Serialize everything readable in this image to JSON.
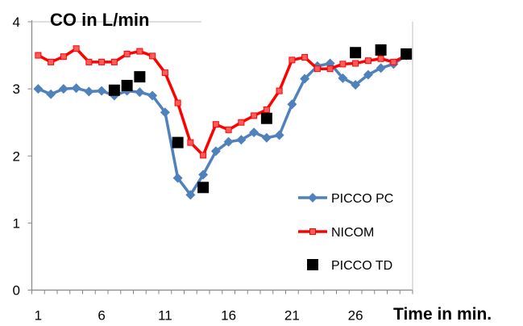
{
  "chart_data": {
    "type": "line",
    "title": "CO in L/min",
    "xlabel": "Time in min.",
    "ylabel": "",
    "xlim": [
      1,
      30
    ],
    "ylim": [
      0,
      4
    ],
    "x_ticks": [
      1,
      6,
      11,
      16,
      21,
      26
    ],
    "y_ticks": [
      0,
      1,
      2,
      3,
      4
    ],
    "grid": false,
    "legend_position": "bottom-right",
    "series": [
      {
        "name": "PICCO PC",
        "style": "line-diamond",
        "color": "#4F81BD",
        "x": [
          1,
          2,
          3,
          4,
          5,
          6,
          7,
          8,
          9,
          10,
          11,
          12,
          13,
          14,
          15,
          16,
          17,
          18,
          19,
          20,
          21,
          22,
          23,
          24,
          25,
          26,
          27,
          28,
          29,
          30
        ],
        "values": [
          3.0,
          2.92,
          3.0,
          3.01,
          2.96,
          2.97,
          2.9,
          2.97,
          2.95,
          2.9,
          2.65,
          1.67,
          1.42,
          1.72,
          2.07,
          2.21,
          2.24,
          2.35,
          2.27,
          2.31,
          2.77,
          3.15,
          3.34,
          3.38,
          3.16,
          3.06,
          3.21,
          3.31,
          3.37,
          3.5
        ]
      },
      {
        "name": "NICOM",
        "style": "line-square",
        "color": "#FF0000",
        "x": [
          1,
          2,
          3,
          4,
          5,
          6,
          7,
          8,
          9,
          10,
          11,
          12,
          13,
          14,
          15,
          16,
          17,
          18,
          19,
          20,
          21,
          22,
          23,
          24,
          25,
          26,
          27,
          28,
          29,
          30
        ],
        "values": [
          3.5,
          3.4,
          3.48,
          3.6,
          3.4,
          3.4,
          3.4,
          3.52,
          3.56,
          3.49,
          3.24,
          2.79,
          2.2,
          2.01,
          2.47,
          2.39,
          2.5,
          2.6,
          2.69,
          2.97,
          3.43,
          3.47,
          3.3,
          3.3,
          3.37,
          3.38,
          3.42,
          3.45,
          3.4,
          3.5
        ]
      },
      {
        "name": "PICCO TD",
        "style": "marker-square",
        "color": "#000000",
        "x": [
          7,
          8,
          9,
          12,
          14,
          19,
          26,
          28,
          30
        ],
        "values": [
          2.98,
          3.05,
          3.18,
          2.2,
          1.53,
          2.56,
          3.54,
          3.58,
          3.52
        ]
      }
    ]
  }
}
